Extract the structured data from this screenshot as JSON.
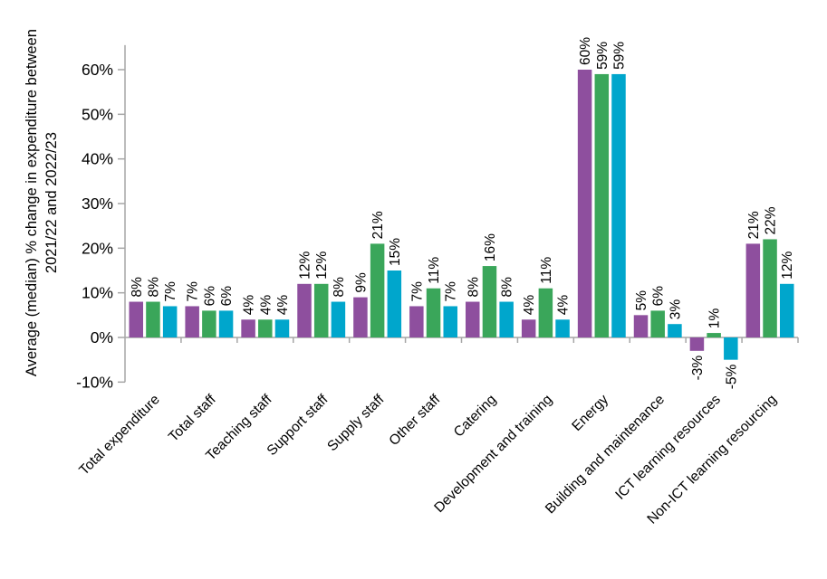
{
  "chart_data": {
    "type": "bar",
    "title": "",
    "ylabel_line1": "Average (median)  % change in expenditure between",
    "ylabel_line2": "2021/22 and 2022/23",
    "xlabel": "",
    "categories": [
      "Total expenditure",
      "Total staff",
      "Teaching staff",
      "Support staff",
      "Supply staff",
      "Other staff",
      "Catering",
      "Development and training",
      "Energy",
      "Building and maintenance",
      "ICT learning resources",
      "Non-ICT learning resourcing"
    ],
    "series": [
      {
        "color_name": "purple",
        "color": "#8E4F9E",
        "values": [
          8,
          7,
          4,
          12,
          9,
          7,
          8,
          4,
          60,
          5,
          -3,
          21
        ]
      },
      {
        "color_name": "green",
        "color": "#3AA65A",
        "values": [
          8,
          6,
          4,
          12,
          21,
          11,
          16,
          11,
          59,
          6,
          1,
          22
        ]
      },
      {
        "color_name": "blue",
        "color": "#00A6CC",
        "values": [
          7,
          6,
          4,
          8,
          15,
          7,
          8,
          4,
          59,
          3,
          -5,
          12
        ]
      }
    ],
    "value_label_suffix": "%",
    "y_ticks": [
      60,
      50,
      40,
      30,
      20,
      10,
      0,
      -10
    ],
    "y_tick_suffix": "%",
    "ylim": [
      -10,
      65.5
    ],
    "grid": false,
    "legend_position": "none",
    "axis_color": "#A6A6A6",
    "text_color": "#000000",
    "background_color": "#FFFFFF"
  }
}
